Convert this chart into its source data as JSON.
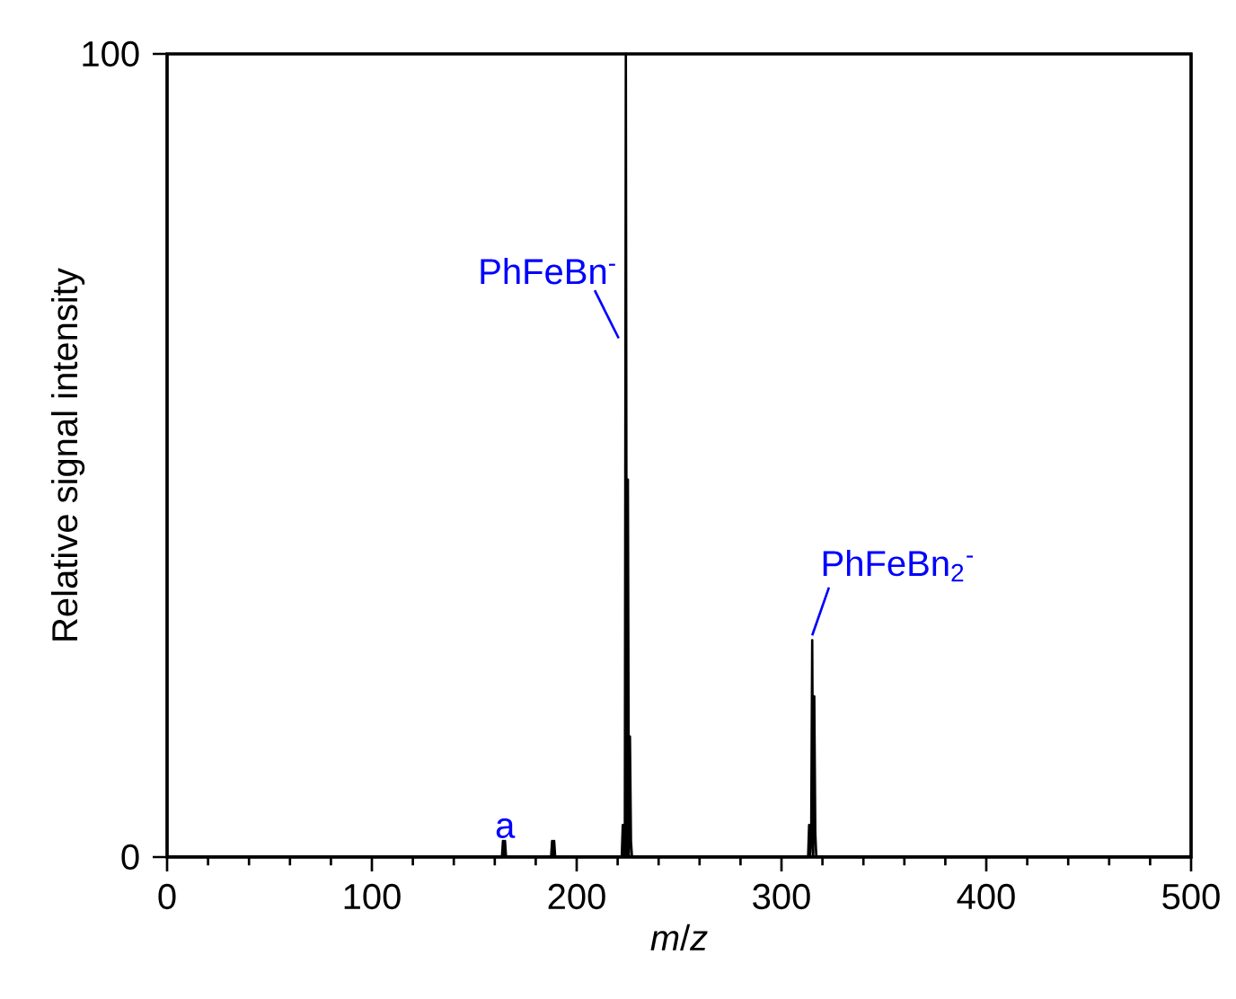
{
  "chart_data": {
    "type": "line",
    "xlabel": "*m*/*z*",
    "ylabel": "Relative signal intensity",
    "xlim": [
      0,
      500
    ],
    "xticks": [
      0,
      100,
      200,
      300,
      400,
      500
    ],
    "ylim": [
      0,
      100
    ],
    "yticks": [
      0,
      100
    ],
    "grid": false,
    "marker": "none",
    "line_style": "solid",
    "series": [
      {
        "color": "#000000",
        "x": [
          0,
          163.5,
          164,
          164.5,
          165,
          165.5,
          166,
          187,
          187.5,
          188,
          188.5,
          189,
          189.5,
          221.5,
          222,
          222.5,
          223,
          223.5,
          224,
          224.5,
          225,
          225.5,
          226,
          226.5,
          227,
          312.5,
          313,
          313.5,
          314,
          314.5,
          315,
          315.5,
          316,
          316.5,
          317,
          500
        ],
        "values": [
          0,
          0,
          2,
          0,
          2,
          0,
          0,
          0,
          0,
          2,
          0,
          2,
          0,
          0,
          0,
          4,
          0,
          0,
          100,
          0,
          47,
          0,
          15,
          2,
          0,
          0,
          0,
          4,
          0,
          2,
          27,
          0,
          20,
          3,
          0,
          0
        ]
      }
    ],
    "annotations": [
      {
        "text": "PhFeBn$^{-}$",
        "x": 224,
        "y": 64
      },
      {
        "text": "PhFeBn$_{2}$$^{-}$",
        "x": 315,
        "y": 27
      },
      {
        "text": "a",
        "x": 165,
        "y": 2
      }
    ]
  }
}
